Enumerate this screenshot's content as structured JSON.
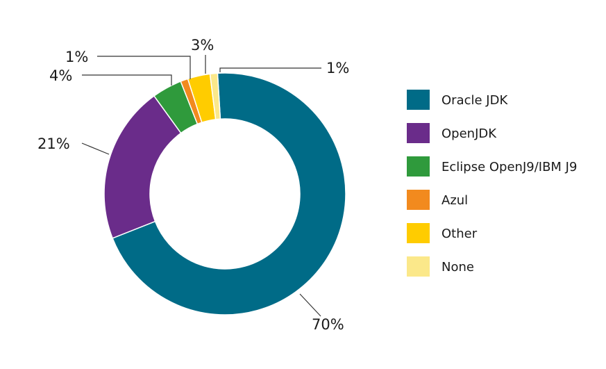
{
  "chart_data": {
    "type": "pie",
    "variant": "donut",
    "title": "",
    "categories": [
      "Oracle JDK",
      "OpenJDK",
      "Eclipse OpenJ9/IBM J9",
      "Azul",
      "Other",
      "None"
    ],
    "values": [
      70,
      21,
      4,
      1,
      3,
      1
    ],
    "labels": [
      "70%",
      "21%",
      "4%",
      "1%",
      "3%",
      "1%"
    ],
    "colors": [
      "#006b87",
      "#6a2c8a",
      "#2f9a3c",
      "#f28a1e",
      "#ffcc00",
      "#fbe88a"
    ],
    "legend": {
      "placement": "right",
      "entries": [
        "Oracle JDK",
        "OpenJDK",
        "Eclipse OpenJ9/IBM J9",
        "Azul",
        "Other",
        "None"
      ]
    }
  }
}
